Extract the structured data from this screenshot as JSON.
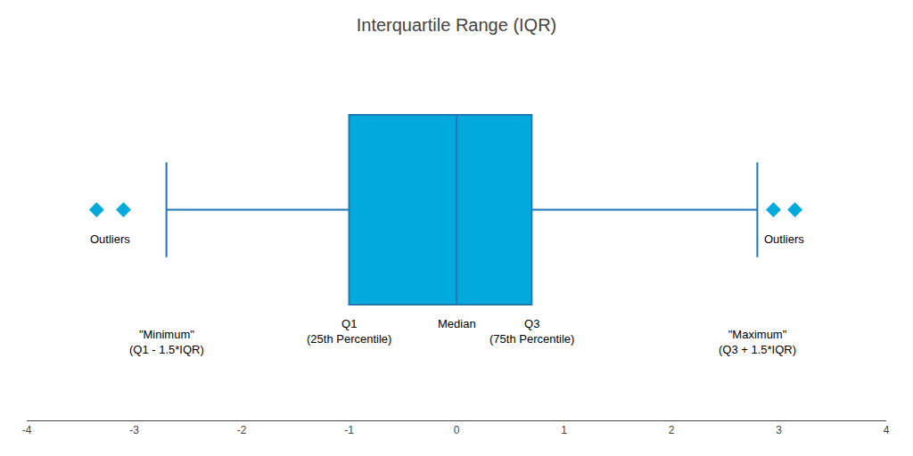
{
  "chart_data": {
    "type": "box",
    "orientation": "horizontal",
    "title": "Interquartile Range (IQR)",
    "q1": -1.0,
    "median": 0.0,
    "q3": 0.7,
    "whisker_low": -2.7,
    "whisker_high": 2.8,
    "outliers": [
      -3.35,
      -3.1,
      2.95,
      3.15
    ],
    "color": "#00AADD",
    "xlim": [
      -4,
      4
    ],
    "xticks": [
      -4,
      -3,
      -2,
      -1,
      0,
      1,
      2,
      3,
      4
    ],
    "tick_labels": "x",
    "grid": false,
    "quartile_labels": [
      {
        "x": -1.0,
        "lines": [
          "Q1",
          "(25th Percentile)"
        ]
      },
      {
        "x": 0.0,
        "lines": [
          "Median"
        ]
      },
      {
        "x": 0.7,
        "lines": [
          "Q3",
          "(75th Percentile)"
        ]
      }
    ],
    "outlier_labels": [
      {
        "x": -3.225,
        "lines": [
          "Outliers"
        ]
      },
      {
        "x": 3.05,
        "lines": [
          "Outliers"
        ]
      }
    ],
    "fence_labels": [
      {
        "x": -2.7,
        "lines": [
          "\"Minimum\"",
          "(Q1 - 1.5*IQR)"
        ]
      },
      {
        "x": 2.8,
        "lines": [
          "\"Maximum\"",
          "(Q3 + 1.5*IQR)"
        ]
      }
    ]
  }
}
